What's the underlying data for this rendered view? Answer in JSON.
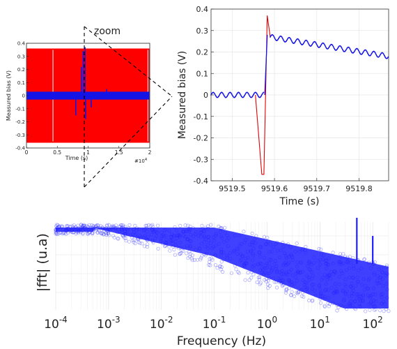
{
  "annotation": "zoom",
  "chart_data": [
    {
      "type": "line",
      "name": "overview",
      "xlabel": "Time (s)",
      "ylabel": "Measured bias (V)",
      "xlim": [
        0,
        20000
      ],
      "ylim": [
        -0.4,
        0.4
      ],
      "x_ticks": [
        "0",
        "0.5",
        "1",
        "1.5",
        "2"
      ],
      "x_exponent": "#10",
      "x_exponent_power": "4",
      "y_ticks": [
        "0.4",
        "0.3",
        "0.2",
        "0.1",
        "0",
        "-0.1",
        "-0.2",
        "-0.3",
        "-0.4"
      ],
      "series": [
        {
          "color": "#ff0000",
          "envelope": [
            -0.36,
            0.36
          ],
          "x_range": [
            0,
            20000
          ]
        },
        {
          "color": "#1414e6",
          "envelope": [
            -0.03,
            0.03
          ],
          "x_range": [
            0,
            20000
          ],
          "spikes": [
            {
              "x": 8000,
              "y": -0.15
            },
            {
              "x": 8900,
              "y": 0.22
            },
            {
              "x": 9200,
              "y": 0.34
            },
            {
              "x": 9500,
              "y": 0.37
            },
            {
              "x": 9600,
              "y": -0.18
            },
            {
              "x": 10500,
              "y": -0.09
            },
            {
              "x": 13000,
              "y": 0.05
            }
          ]
        }
      ],
      "grid": false
    },
    {
      "type": "line",
      "name": "zoom",
      "xlabel": "Time (s)",
      "ylabel": "Measured bias (V)",
      "xlim": [
        9519.45,
        9519.87
      ],
      "ylim": [
        -0.4,
        0.4
      ],
      "x_ticks": [
        "9519.5",
        "9519.6",
        "9519.7",
        "9519.8"
      ],
      "y_ticks": [
        "0.4",
        "0.3",
        "0.2",
        "0.1",
        "0",
        "-0.1",
        "-0.2",
        "-0.3",
        "-0.4"
      ],
      "series": [
        {
          "color": "#1414e6",
          "marker": "dot",
          "points": [
            [
              9519.45,
              0.0
            ],
            [
              9519.575,
              0.0
            ],
            [
              9519.576,
              0.0
            ],
            [
              9519.59,
              0.27
            ],
            [
              9519.87,
              0.18
            ]
          ],
          "ripple_amplitude": 0.012,
          "ripple_period": 0.02
        },
        {
          "color": "#e00000",
          "points": [
            [
              9519.555,
              0.0
            ],
            [
              9519.57,
              -0.37
            ],
            [
              9519.575,
              -0.37
            ],
            [
              9519.583,
              0.37
            ],
            [
              9519.59,
              0.27
            ]
          ]
        }
      ],
      "grid": true
    },
    {
      "type": "scatter",
      "name": "spectrum",
      "xlabel": "Frequency (Hz)",
      "ylabel": "|fft| (u.a)",
      "xscale": "log",
      "xlim": [
        0.0001,
        200
      ],
      "x_ticks": [
        {
          "base": "10",
          "exp": "-4"
        },
        {
          "base": "10",
          "exp": "-3"
        },
        {
          "base": "10",
          "exp": "-2"
        },
        {
          "base": "10",
          "exp": "-1"
        },
        {
          "base": "10",
          "exp": "0"
        },
        {
          "base": "10",
          "exp": "1"
        },
        {
          "base": "10",
          "exp": "2"
        }
      ],
      "series": [
        {
          "color": "#1e1eff",
          "marker": "circle-open",
          "alpha": 0.35,
          "peaks_hz": [
            50,
            100
          ]
        }
      ],
      "grid": true
    }
  ]
}
